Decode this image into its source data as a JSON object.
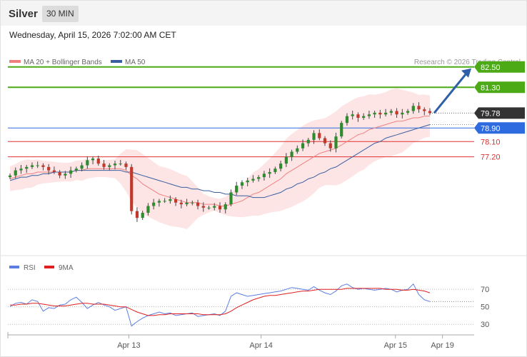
{
  "header": {
    "symbol": "Silver",
    "timeframe": "30 MIN"
  },
  "datetime": "Wednesday, April 15, 2026 7:02:00 AM CET",
  "legend": {
    "ma20": "MA 20 + Bollinger Bands",
    "ma50": "MA 50",
    "credit": "Research © 2026 Trading Central",
    "ma20_color": "#f08080",
    "ma50_color": "#3a5fa0"
  },
  "rsi_legend": {
    "rsi": "RSI",
    "ma": "9MA",
    "rsi_color": "#5b7fe0",
    "ma_color": "#e02020"
  },
  "chart_data": [
    {
      "type": "line",
      "title": "",
      "x_axis_labels": [
        "Apr 13",
        "Apr 14",
        "Apr 15",
        "Apr 19"
      ],
      "price_levels": [
        {
          "value": 82.5,
          "label": "82.50",
          "color": "#4caa17",
          "kind": "resistance"
        },
        {
          "value": 81.3,
          "label": "81.30",
          "color": "#4caa17",
          "kind": "resistance"
        },
        {
          "value": 79.78,
          "label": "79.78",
          "color": "#333333",
          "kind": "last-price"
        },
        {
          "value": 78.9,
          "label": "78.90",
          "color": "#2f6be0",
          "kind": "pivot"
        },
        {
          "value": 78.1,
          "label": "78.10",
          "color": "#e03030",
          "kind": "support"
        },
        {
          "value": 77.2,
          "label": "77.20",
          "color": "#e03030",
          "kind": "support"
        }
      ],
      "ylim": [
        71.5,
        83.5
      ],
      "series": [
        {
          "name": "Price",
          "style": "candlestick",
          "up_color": "#2e8b2e",
          "down_color": "#c0392b",
          "values": [
            76.1,
            76.4,
            76.5,
            76.6,
            76.7,
            76.7,
            76.6,
            76.4,
            76.3,
            76.1,
            76.2,
            76.4,
            76.5,
            76.7,
            77.0,
            77.1,
            76.8,
            76.6,
            76.7,
            76.8,
            76.8,
            76.6,
            74.0,
            73.6,
            73.9,
            74.3,
            74.5,
            74.6,
            74.6,
            74.7,
            74.5,
            74.4,
            74.5,
            74.5,
            74.3,
            74.2,
            74.2,
            74.3,
            74.1,
            74.4,
            75.1,
            75.5,
            75.7,
            75.8,
            75.9,
            76.0,
            76.2,
            76.3,
            76.5,
            76.8,
            77.2,
            77.5,
            77.7,
            78.0,
            78.2,
            78.6,
            78.3,
            78.0,
            77.7,
            78.4,
            79.2,
            79.6,
            79.7,
            79.5,
            79.6,
            79.7,
            79.8,
            79.7,
            79.8,
            79.9,
            79.7,
            79.8,
            79.9,
            80.2,
            80.0,
            79.9,
            79.78
          ]
        },
        {
          "name": "MA 20",
          "values": [
            75.9,
            76.0,
            76.1,
            76.2,
            76.2,
            76.3,
            76.3,
            76.3,
            76.3,
            76.3,
            76.3,
            76.3,
            76.4,
            76.4,
            76.5,
            76.5,
            76.5,
            76.5,
            76.5,
            76.5,
            76.5,
            76.4,
            76.1,
            75.9,
            75.6,
            75.4,
            75.2,
            75.0,
            74.9,
            74.8,
            74.7,
            74.6,
            74.5,
            74.5,
            74.5,
            74.4,
            74.4,
            74.4,
            74.3,
            74.3,
            74.4,
            74.5,
            74.6,
            74.8,
            75.0,
            75.1,
            75.3,
            75.5,
            75.7,
            75.9,
            76.2,
            76.4,
            76.6,
            76.8,
            77.0,
            77.2,
            77.4,
            77.5,
            77.6,
            77.7,
            77.9,
            78.1,
            78.3,
            78.5,
            78.6,
            78.8,
            78.9,
            79.0,
            79.1,
            79.2,
            79.3,
            79.3,
            79.4,
            79.5,
            79.5,
            79.6,
            79.6
          ]
        },
        {
          "name": "MA 50",
          "values": [
            75.8,
            75.9,
            76.0,
            76.0,
            76.1,
            76.1,
            76.2,
            76.2,
            76.3,
            76.3,
            76.3,
            76.3,
            76.4,
            76.4,
            76.4,
            76.4,
            76.4,
            76.4,
            76.4,
            76.4,
            76.4,
            76.3,
            76.3,
            76.2,
            76.1,
            76.0,
            75.9,
            75.8,
            75.7,
            75.6,
            75.5,
            75.4,
            75.4,
            75.3,
            75.3,
            75.2,
            75.2,
            75.1,
            75.1,
            75.0,
            75.0,
            74.9,
            74.9,
            74.9,
            74.8,
            74.8,
            74.8,
            74.9,
            75.0,
            75.1,
            75.3,
            75.4,
            75.6,
            75.7,
            75.9,
            76.0,
            76.2,
            76.3,
            76.5,
            76.6,
            76.8,
            77.0,
            77.2,
            77.4,
            77.6,
            77.8,
            78.0,
            78.1,
            78.3,
            78.4,
            78.5,
            78.6,
            78.7,
            78.8,
            78.9,
            79.0,
            79.1
          ]
        }
      ],
      "annotations": [
        "arrow-up-toward-82.50"
      ]
    },
    {
      "type": "line",
      "title": "",
      "ylim": [
        22,
        84
      ],
      "y_tick_labels": [
        "70",
        "50",
        "30"
      ],
      "y_ticks": [
        70,
        50,
        30
      ],
      "series": [
        {
          "name": "RSI",
          "color": "#5b7fe0",
          "values": [
            50,
            54,
            55,
            53,
            58,
            56,
            45,
            49,
            48,
            52,
            53,
            58,
            61,
            55,
            48,
            52,
            55,
            52,
            50,
            46,
            48,
            50,
            28,
            33,
            37,
            40,
            42,
            44,
            42,
            43,
            40,
            41,
            42,
            43,
            39,
            40,
            41,
            42,
            40,
            45,
            62,
            66,
            64,
            62,
            63,
            64,
            65,
            66,
            67,
            68,
            70,
            72,
            71,
            70,
            69,
            73,
            69,
            66,
            64,
            68,
            74,
            76,
            72,
            70,
            71,
            70,
            69,
            70,
            71,
            70,
            67,
            69,
            70,
            76,
            64,
            58,
            56
          ]
        },
        {
          "name": "9MA",
          "color": "#e02020",
          "values": [
            52,
            52,
            53,
            53,
            54,
            54,
            53,
            52,
            51,
            51,
            51,
            52,
            53,
            54,
            54,
            53,
            53,
            53,
            52,
            51,
            50,
            50,
            47,
            44,
            42,
            40,
            40,
            41,
            41,
            42,
            42,
            42,
            42,
            42,
            42,
            41,
            41,
            41,
            41,
            42,
            45,
            49,
            52,
            55,
            58,
            60,
            62,
            63,
            63,
            64,
            65,
            66,
            67,
            68,
            68,
            69,
            70,
            70,
            70,
            70,
            70,
            71,
            71,
            71,
            71,
            71,
            71,
            71,
            70,
            70,
            70,
            69,
            69,
            70,
            69,
            68,
            66
          ]
        }
      ]
    }
  ]
}
